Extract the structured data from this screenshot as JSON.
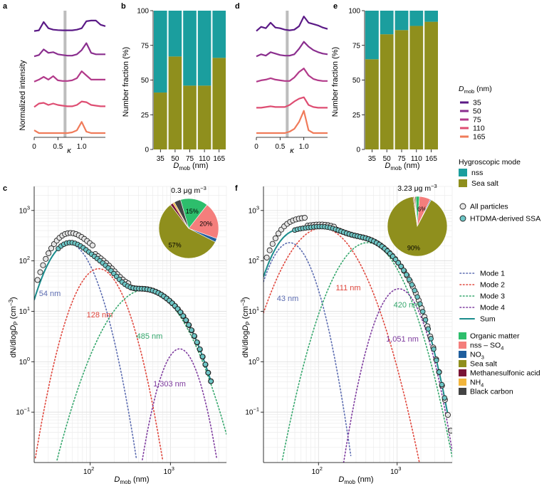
{
  "panel_labels": {
    "a": "a",
    "b": "b",
    "c": "c",
    "d": "d",
    "e": "e",
    "f": "f"
  },
  "chart_data": [
    {
      "panel": "a",
      "type": "line",
      "xlabel": "κ",
      "ylabel": "Normalized intensity",
      "xlim": [
        0,
        1.5
      ],
      "x_ticks": [
        "0",
        "0.5",
        "1.0"
      ],
      "threshold_kappa": 0.65,
      "x": [
        0.0,
        0.1,
        0.2,
        0.3,
        0.4,
        0.5,
        0.6,
        0.7,
        0.8,
        0.9,
        1.0,
        1.1,
        1.2,
        1.3,
        1.4,
        1.5
      ],
      "series": [
        {
          "name": "35",
          "values": [
            0.05,
            0.1,
            0.7,
            0.25,
            0.15,
            0.12,
            0.1,
            0.1,
            0.1,
            0.15,
            0.25,
            0.75,
            0.8,
            0.8,
            0.5,
            0.4
          ]
        },
        {
          "name": "50",
          "values": [
            0.05,
            0.15,
            0.55,
            0.3,
            0.35,
            0.2,
            0.15,
            0.1,
            0.1,
            0.2,
            0.5,
            1.0,
            0.3,
            0.2,
            0.2,
            0.2
          ]
        },
        {
          "name": "75",
          "values": [
            0.05,
            0.2,
            0.4,
            0.2,
            0.45,
            0.15,
            0.1,
            0.1,
            0.15,
            0.3,
            0.8,
            0.5,
            0.2,
            0.2,
            0.2,
            0.2
          ]
        },
        {
          "name": "110",
          "values": [
            0.05,
            0.3,
            0.35,
            0.2,
            0.3,
            0.2,
            0.15,
            0.1,
            0.1,
            0.2,
            0.45,
            0.4,
            0.2,
            0.15,
            0.1,
            0.1
          ]
        },
        {
          "name": "165",
          "values": [
            0.2,
            0.0,
            0.0,
            0.0,
            0.0,
            0.0,
            0.0,
            0.0,
            0.05,
            0.2,
            0.8,
            0.1,
            0.0,
            0.0,
            0.0,
            0.0
          ]
        }
      ]
    },
    {
      "panel": "b",
      "type": "bar",
      "stacked": true,
      "xlabel": "D_mob (nm)",
      "ylabel": "Number fraction (%)",
      "ylim": [
        0,
        100
      ],
      "y_ticks": [
        0,
        25,
        50,
        75,
        100
      ],
      "categories": [
        "35",
        "50",
        "75",
        "110",
        "165"
      ],
      "series": [
        {
          "name": "Sea salt",
          "values": [
            41,
            67,
            46,
            46,
            66
          ]
        },
        {
          "name": "nss",
          "values": [
            59,
            33,
            54,
            54,
            34
          ]
        }
      ]
    },
    {
      "panel": "d",
      "type": "line",
      "xlabel": "κ",
      "ylabel": "",
      "xlim": [
        0,
        1.5
      ],
      "x_ticks": [
        "0",
        "0.5",
        "1.0"
      ],
      "threshold_kappa": 0.65,
      "x": [
        0.0,
        0.1,
        0.2,
        0.3,
        0.4,
        0.5,
        0.6,
        0.7,
        0.8,
        0.9,
        1.0,
        1.1,
        1.2,
        1.3,
        1.4,
        1.5
      ],
      "series": [
        {
          "name": "35",
          "values": [
            0.05,
            0.35,
            0.25,
            0.65,
            0.3,
            0.25,
            0.15,
            0.1,
            0.15,
            0.4,
            1.1,
            0.65,
            0.55,
            0.45,
            0.3,
            0.2
          ]
        },
        {
          "name": "50",
          "values": [
            0.05,
            0.2,
            0.1,
            0.35,
            0.25,
            0.15,
            0.1,
            0.1,
            0.2,
            0.6,
            1.1,
            0.75,
            0.5,
            0.35,
            0.25,
            0.2
          ]
        },
        {
          "name": "75",
          "values": [
            0.05,
            0.15,
            0.2,
            0.3,
            0.2,
            0.15,
            0.1,
            0.1,
            0.35,
            0.75,
            1.0,
            0.5,
            0.25,
            0.15,
            0.1,
            0.1
          ]
        },
        {
          "name": "110",
          "values": [
            0.0,
            0.0,
            0.05,
            0.1,
            0.05,
            0.05,
            0.05,
            0.2,
            0.45,
            0.65,
            0.75,
            0.2,
            0.05,
            0.0,
            0.0,
            0.0
          ]
        },
        {
          "name": "165",
          "values": [
            0.0,
            0.0,
            0.0,
            0.0,
            0.0,
            0.0,
            0.0,
            0.1,
            0.3,
            0.8,
            1.6,
            0.2,
            0.0,
            0.0,
            0.0,
            0.0
          ]
        }
      ]
    },
    {
      "panel": "e",
      "type": "bar",
      "stacked": true,
      "xlabel": "D_mob (nm)",
      "ylabel": "Number fraction (%)",
      "ylim": [
        0,
        100
      ],
      "y_ticks": [
        0,
        25,
        50,
        75,
        100
      ],
      "categories": [
        "35",
        "50",
        "75",
        "110",
        "165"
      ],
      "series": [
        {
          "name": "Sea salt",
          "values": [
            65,
            83,
            86,
            89,
            92
          ]
        },
        {
          "name": "nss",
          "values": [
            35,
            17,
            14,
            11,
            8
          ]
        }
      ]
    },
    {
      "panel": "c",
      "type": "scatter",
      "y_log": true,
      "x_log": true,
      "xlabel": "D_mob (nm)",
      "ylabel": "dN/dlogD_p (cm^-3)",
      "xlim": [
        20,
        5000
      ],
      "ylim": [
        0.01,
        3000
      ],
      "mass_label": "0.3 μg m^-3",
      "mode_labels": [
        "54 nm",
        "128 nm",
        "485 nm",
        "1,303 nm"
      ],
      "modes": [
        {
          "name": "Mode 1",
          "dg": 54,
          "n": 220,
          "sigma": 1.55
        },
        {
          "name": "Mode 2",
          "dg": 128,
          "n": 70,
          "sigma": 1.55
        },
        {
          "name": "Mode 3",
          "dg": 485,
          "n": 27,
          "sigma": 1.9
        },
        {
          "name": "Mode 4",
          "dg": 1303,
          "n": 1.8,
          "sigma": 1.4
        }
      ],
      "pie": [
        {
          "name": "Organic matter",
          "value": 15,
          "label": "15%"
        },
        {
          "name": "nss – SO4",
          "value": 20,
          "label": "20%"
        },
        {
          "name": "NO3",
          "value": 2,
          "label": ""
        },
        {
          "name": "Sea salt",
          "value": 57,
          "label": "57%"
        },
        {
          "name": "Methanesulfonic acid",
          "value": 1.5,
          "label": ""
        },
        {
          "name": "NH4",
          "value": 1,
          "label": ""
        },
        {
          "name": "Black carbon",
          "value": 3.5,
          "label": ""
        }
      ]
    },
    {
      "panel": "f",
      "type": "scatter",
      "y_log": true,
      "x_log": true,
      "xlabel": "D_mob (nm)",
      "ylabel": "dN/dlogD_p (cm^-3)",
      "xlim": [
        20,
        5000
      ],
      "ylim": [
        0.01,
        3000
      ],
      "mass_label": "3.23 μg m^-3",
      "mode_labels": [
        "43 nm",
        "111 nm",
        "420 nm",
        "1,051 nm"
      ],
      "modes": [
        {
          "name": "Mode 1",
          "dg": 43,
          "n": 230,
          "sigma": 1.5
        },
        {
          "name": "Mode 2",
          "dg": 111,
          "n": 450,
          "sigma": 1.85
        },
        {
          "name": "Mode 3",
          "dg": 420,
          "n": 230,
          "sigma": 1.75
        },
        {
          "name": "Mode 4",
          "dg": 1051,
          "n": 28,
          "sigma": 1.5
        }
      ],
      "pie": [
        {
          "name": "Organic matter",
          "value": 2,
          "label": ""
        },
        {
          "name": "nss – SO4",
          "value": 6,
          "label": "6%"
        },
        {
          "name": "NO3",
          "value": 0.5,
          "label": ""
        },
        {
          "name": "Sea salt",
          "value": 90,
          "label": "90%"
        },
        {
          "name": "Methanesulfonic acid",
          "value": 0.5,
          "label": ""
        },
        {
          "name": "NH4",
          "value": 0.5,
          "label": ""
        },
        {
          "name": "Black carbon",
          "value": 0.5,
          "label": ""
        }
      ]
    }
  ],
  "legends": {
    "dmob_title": "D",
    "dmob_title_sub": "mob",
    "dmob_title_unit": " (nm)",
    "dmob_items": [
      {
        "label": "35",
        "color": "#5B1A86"
      },
      {
        "label": "50",
        "color": "#8A2E8E"
      },
      {
        "label": "75",
        "color": "#B23A8A"
      },
      {
        "label": "110",
        "color": "#DE4D72"
      },
      {
        "label": "165",
        "color": "#F07B5A"
      }
    ],
    "hygro_title": "Hygroscopic mode",
    "hygro_items": [
      {
        "label": "nss",
        "color": "#1B9E9E"
      },
      {
        "label": "Sea salt",
        "color": "#8F8F1D"
      }
    ],
    "particles_items": [
      {
        "label": "All particles",
        "kind": "all"
      },
      {
        "label": "HTDMA-derived SSA",
        "kind": "ssa"
      }
    ],
    "mode_items": [
      {
        "label": "Mode 1",
        "color": "#5B6BB0"
      },
      {
        "label": "Mode 2",
        "color": "#E0463C"
      },
      {
        "label": "Mode 3",
        "color": "#33A66B"
      },
      {
        "label": "Mode 4",
        "color": "#7D3A9E"
      },
      {
        "label": "Sum",
        "color": "#1A8C8C"
      }
    ],
    "composition_items": [
      {
        "label": "Organic matter",
        "color": "#2DBE6C"
      },
      {
        "label": "nss – SO",
        "sub": "4",
        "color": "#F47E7C"
      },
      {
        "label": "NO",
        "sub": "3",
        "color": "#1F5E9E"
      },
      {
        "label": "Sea salt",
        "color": "#8F8F1D"
      },
      {
        "label": "Methanesulfonic acid",
        "color": "#7A1335"
      },
      {
        "label": "NH",
        "sub": "4",
        "color": "#F2B53C"
      },
      {
        "label": "Black carbon",
        "color": "#444444"
      }
    ]
  },
  "axis_text": {
    "kappa": "κ",
    "norm_int": "Normalized intensity",
    "num_frac": "Number fraction (%)",
    "dmob_main": "D",
    "dmob_sub": "mob",
    "dmob_unit": " (nm)",
    "dn_main": "dN/dlog",
    "dn_dp": "D",
    "dn_sub": "P",
    "dn_unit": " (cm",
    "dn_exp": "−3",
    "dn_close": ")"
  }
}
